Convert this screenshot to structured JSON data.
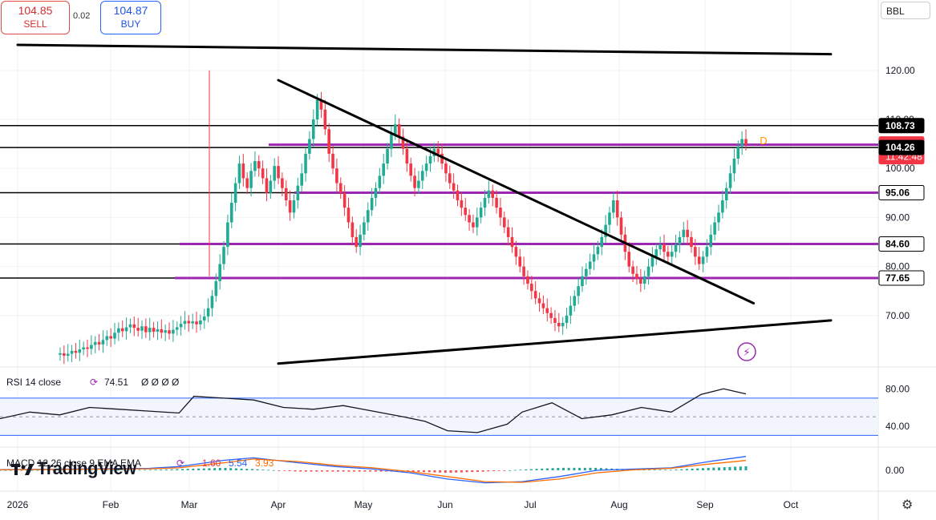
{
  "symbol": "BBL",
  "trade": {
    "sell_price": "104.85",
    "sell_label": "SELL",
    "spread": "0.02",
    "buy_price": "104.87",
    "buy_label": "BUY"
  },
  "brand": "TradingView",
  "colors": {
    "up": "#22ab94",
    "down": "#f23645",
    "level": "#9c27b0",
    "trend": "#000000",
    "rsi": "#131722",
    "band": "#2962ff",
    "macd": "#2962ff",
    "signal": "#ff6d00"
  },
  "chart_data": [
    {
      "type": "candlestick",
      "title": "",
      "x_ticks": [
        "2026",
        "Feb",
        "Mar",
        "Apr",
        "May",
        "Jun",
        "Jul",
        "Aug",
        "Sep",
        "Oct"
      ],
      "y_ticks": [
        "120.00",
        "110.00",
        "100.00",
        "90.00",
        "80.00",
        "70.00"
      ],
      "ylim": [
        60,
        127
      ],
      "price_labels": [
        {
          "value": 108.73,
          "text": "108.73",
          "style": "black"
        },
        {
          "value": 104.84,
          "text": "104.84",
          "subtext": "11:42:48",
          "style": "red"
        },
        {
          "value": 104.26,
          "text": "104.26",
          "style": "black"
        },
        {
          "value": 95.06,
          "text": "95.06",
          "style": "white"
        },
        {
          "value": 84.6,
          "text": "84.60",
          "style": "white"
        },
        {
          "value": 77.65,
          "text": "77.65",
          "style": "white"
        }
      ],
      "horizontal_levels_black": [
        108.73,
        104.26,
        95.06,
        84.6,
        77.65
      ],
      "horizontal_levels_purple": [
        104.84,
        95.06,
        84.6,
        77.65
      ],
      "trendlines": [
        {
          "from": [
            "Jan 1",
            125.2
          ],
          "to": [
            "Oct 15",
            123.3
          ]
        },
        {
          "from": [
            "Apr 1",
            118.0
          ],
          "to": [
            "Sep 18",
            72.5
          ]
        },
        {
          "from": [
            "Apr 1",
            60.2
          ],
          "to": [
            "Oct 15",
            69.0
          ]
        }
      ],
      "candles_approx": [
        [
          62.0,
          62.3
        ],
        [
          62.3,
          61.8
        ],
        [
          61.8,
          62.2
        ],
        [
          62.2,
          62.8
        ],
        [
          62.8,
          62.4
        ],
        [
          62.4,
          63.1
        ],
        [
          63.1,
          63.5
        ],
        [
          63.5,
          63.2
        ],
        [
          63.2,
          64.0
        ],
        [
          64.0,
          64.6
        ],
        [
          64.6,
          64.1
        ],
        [
          64.1,
          65.0
        ],
        [
          65.0,
          65.8
        ],
        [
          65.8,
          65.3
        ],
        [
          65.3,
          66.5
        ],
        [
          66.5,
          67.4
        ],
        [
          67.4,
          66.8
        ],
        [
          66.8,
          67.6
        ],
        [
          67.6,
          68.2
        ],
        [
          68.2,
          67.5
        ],
        [
          67.5,
          66.9
        ],
        [
          66.9,
          67.8
        ],
        [
          67.8,
          66.6
        ],
        [
          66.6,
          67.5
        ],
        [
          67.5,
          66.7
        ],
        [
          66.7,
          67.2
        ],
        [
          67.2,
          66.5
        ],
        [
          66.5,
          67.0
        ],
        [
          67.0,
          66.3
        ],
        [
          66.3,
          67.1
        ],
        [
          67.1,
          67.6
        ],
        [
          67.6,
          68.3
        ],
        [
          68.3,
          68.9
        ],
        [
          68.9,
          68.4
        ],
        [
          68.4,
          68.8
        ],
        [
          68.8,
          68.2
        ],
        [
          68.2,
          69.0
        ],
        [
          69.0,
          69.8
        ],
        [
          69.8,
          71.5
        ],
        [
          71.5,
          74.0
        ],
        [
          74.0,
          77.0
        ],
        [
          77.0,
          80.5
        ],
        [
          80.5,
          84.0
        ],
        [
          84.0,
          89.0
        ],
        [
          89.0,
          93.0
        ],
        [
          93.0,
          97.0
        ],
        [
          97.0,
          101.0
        ],
        [
          101.0,
          98.0
        ],
        [
          98.0,
          96.0
        ],
        [
          96.0,
          99.5
        ],
        [
          99.5,
          101.5
        ],
        [
          101.5,
          100.0
        ],
        [
          100.0,
          98.0
        ],
        [
          98.0,
          95.0
        ],
        [
          95.0,
          97.5
        ],
        [
          97.5,
          100.5
        ],
        [
          100.5,
          98.0
        ],
        [
          98.0,
          96.0
        ],
        [
          96.0,
          93.5
        ],
        [
          93.5,
          91.0
        ],
        [
          91.0,
          93.5
        ],
        [
          93.5,
          96.5
        ],
        [
          96.5,
          99.0
        ],
        [
          99.0,
          103.0
        ],
        [
          103.0,
          106.0
        ],
        [
          106.0,
          110.0
        ],
        [
          110.0,
          114.0
        ],
        [
          114.0,
          112.0
        ],
        [
          112.0,
          108.0
        ],
        [
          108.0,
          103.0
        ],
        [
          103.0,
          100.0
        ],
        [
          100.0,
          97.0
        ],
        [
          97.0,
          95.0
        ],
        [
          95.0,
          92.0
        ],
        [
          92.0,
          89.0
        ],
        [
          89.0,
          86.0
        ],
        [
          86.0,
          84.0
        ],
        [
          84.0,
          86.5
        ],
        [
          86.5,
          89.0
        ],
        [
          89.0,
          91.5
        ],
        [
          91.5,
          94.0
        ],
        [
          94.0,
          96.0
        ],
        [
          96.0,
          98.5
        ],
        [
          98.5,
          101.0
        ],
        [
          101.0,
          104.0
        ],
        [
          104.0,
          107.0
        ],
        [
          107.0,
          109.0
        ],
        [
          109.0,
          106.5
        ],
        [
          106.5,
          104.0
        ],
        [
          104.0,
          101.0
        ],
        [
          101.0,
          98.5
        ],
        [
          98.5,
          96.0
        ],
        [
          96.0,
          97.5
        ],
        [
          97.5,
          99.5
        ],
        [
          99.5,
          101.0
        ],
        [
          101.0,
          102.5
        ],
        [
          102.5,
          104.0
        ],
        [
          104.0,
          103.0
        ],
        [
          103.0,
          101.0
        ],
        [
          101.0,
          99.0
        ],
        [
          99.0,
          97.0
        ],
        [
          97.0,
          95.5
        ],
        [
          95.5,
          93.5
        ],
        [
          93.5,
          92.0
        ],
        [
          92.0,
          90.5
        ],
        [
          90.5,
          89.0
        ],
        [
          89.0,
          88.0
        ],
        [
          88.0,
          90.0
        ],
        [
          90.0,
          92.0
        ],
        [
          92.0,
          94.0
        ],
        [
          94.0,
          95.5
        ],
        [
          95.5,
          94.0
        ],
        [
          94.0,
          92.0
        ],
        [
          92.0,
          90.0
        ],
        [
          90.0,
          88.0
        ],
        [
          88.0,
          86.0
        ],
        [
          86.0,
          84.0
        ],
        [
          84.0,
          82.0
        ],
        [
          82.0,
          80.0
        ],
        [
          80.0,
          78.0
        ],
        [
          78.0,
          76.5
        ],
        [
          76.5,
          75.0
        ],
        [
          75.0,
          73.5
        ],
        [
          73.5,
          72.5
        ],
        [
          72.5,
          71.5
        ],
        [
          71.5,
          70.5
        ],
        [
          70.5,
          69.5
        ],
        [
          69.5,
          68.5
        ],
        [
          68.5,
          67.8
        ],
        [
          67.8,
          68.5
        ],
        [
          68.5,
          70.0
        ],
        [
          70.0,
          72.0
        ],
        [
          72.0,
          74.0
        ],
        [
          74.0,
          76.0
        ],
        [
          76.0,
          78.0
        ],
        [
          78.0,
          79.5
        ],
        [
          79.5,
          81.0
        ],
        [
          81.0,
          82.5
        ],
        [
          82.5,
          84.0
        ],
        [
          84.0,
          86.0
        ],
        [
          86.0,
          88.5
        ],
        [
          88.5,
          91.0
        ],
        [
          91.0,
          93.5
        ],
        [
          93.5,
          90.0
        ],
        [
          90.0,
          86.5
        ],
        [
          86.5,
          83.0
        ],
        [
          83.0,
          80.0
        ],
        [
          80.0,
          78.5
        ],
        [
          78.5,
          77.5
        ],
        [
          77.5,
          76.5
        ],
        [
          76.5,
          78.0
        ],
        [
          78.0,
          80.0
        ],
        [
          80.0,
          82.0
        ],
        [
          82.0,
          83.5
        ],
        [
          83.5,
          84.5
        ],
        [
          84.5,
          83.0
        ],
        [
          83.0,
          82.0
        ],
        [
          82.0,
          83.0
        ],
        [
          83.0,
          84.5
        ],
        [
          84.5,
          86.0
        ],
        [
          86.0,
          87.5
        ],
        [
          87.5,
          86.0
        ],
        [
          86.0,
          84.0
        ],
        [
          84.0,
          82.0
        ],
        [
          82.0,
          80.5
        ],
        [
          80.5,
          82.0
        ],
        [
          82.0,
          84.0
        ],
        [
          84.0,
          86.5
        ],
        [
          86.5,
          89.0
        ],
        [
          89.0,
          91.0
        ],
        [
          91.0,
          93.5
        ],
        [
          93.5,
          96.0
        ],
        [
          96.0,
          99.0
        ],
        [
          99.0,
          102.0
        ],
        [
          102.0,
          104.5
        ],
        [
          104.5,
          106.0
        ],
        [
          106.0,
          104.84
        ]
      ]
    },
    {
      "type": "line",
      "title": "RSI 14 close",
      "legend_value": "74.51",
      "legend_extra": "Ø Ø Ø Ø",
      "y_ticks": [
        "80.00",
        "40.00"
      ],
      "ylim": [
        20,
        100
      ],
      "bands": [
        70,
        30
      ],
      "x": [
        0,
        0.04,
        0.08,
        0.12,
        0.16,
        0.2,
        0.24,
        0.26,
        0.3,
        0.34,
        0.38,
        0.42,
        0.46,
        0.5,
        0.54,
        0.57,
        0.6,
        0.64,
        0.68,
        0.7,
        0.74,
        0.78,
        0.82,
        0.86,
        0.9,
        0.94,
        0.97,
        1
      ],
      "values": [
        48,
        55,
        52,
        60,
        58,
        56,
        54,
        72,
        70,
        68,
        60,
        58,
        62,
        56,
        50,
        45,
        35,
        33,
        42,
        55,
        65,
        48,
        52,
        60,
        55,
        74,
        80,
        74.51
      ]
    },
    {
      "type": "bar+line",
      "title": "MACD 12 26 close 9 EMA EMA",
      "legend_values": [
        "1.60",
        "5.54",
        "3.93"
      ],
      "y_ticks": [
        "0.00"
      ],
      "ylim": [
        -8,
        8
      ],
      "x": [
        0,
        0.1,
        0.2,
        0.24,
        0.3,
        0.34,
        0.4,
        0.45,
        0.5,
        0.55,
        0.6,
        0.65,
        0.7,
        0.75,
        0.8,
        0.85,
        0.9,
        0.95,
        1
      ],
      "macd": [
        0.3,
        0.5,
        0.8,
        1.5,
        4.0,
        5.0,
        3.0,
        1.5,
        0.5,
        -1.0,
        -3.5,
        -5.0,
        -4.5,
        -2.5,
        0.0,
        0.5,
        1.0,
        3.5,
        5.54
      ],
      "signal": [
        0.2,
        0.4,
        0.6,
        1.0,
        3.0,
        4.5,
        3.5,
        2.0,
        1.0,
        -0.5,
        -2.5,
        -4.5,
        -4.8,
        -3.5,
        -1.0,
        0.2,
        0.8,
        2.5,
        3.93
      ],
      "histogram": [
        0.1,
        0.1,
        0.2,
        0.5,
        1.0,
        0.5,
        -0.5,
        -0.5,
        -0.5,
        -0.5,
        -1.0,
        -0.5,
        0.3,
        1.0,
        1.0,
        0.3,
        0.2,
        1.0,
        1.6
      ]
    }
  ]
}
